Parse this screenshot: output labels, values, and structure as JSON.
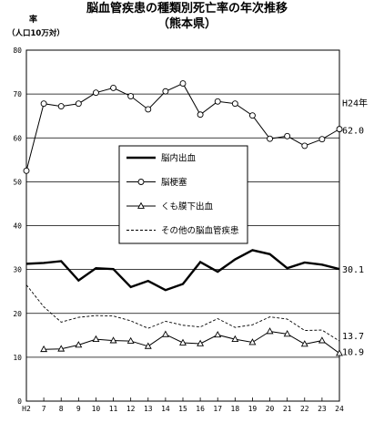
{
  "chart_data": {
    "type": "line",
    "title": "脳血管疾患の種類別死亡率の年次推移",
    "subtitle": "（熊本県）",
    "ylabel": "率",
    "yunit": "（人口10万対）",
    "ylim": [
      0,
      80
    ],
    "yticks": [
      0,
      10,
      20,
      30,
      40,
      50,
      60,
      70,
      80
    ],
    "grid": true,
    "legend_placement": "center",
    "x": [
      "H2",
      "7",
      "8",
      "9",
      "10",
      "11",
      "12",
      "13",
      "14",
      "15",
      "16",
      "17",
      "18",
      "19",
      "20",
      "21",
      "22",
      "23",
      "24"
    ],
    "series": [
      {
        "name": "脳内出血",
        "style": "thick-solid",
        "values": [
          31.3,
          31.5,
          31.9,
          27.5,
          30.3,
          30.1,
          26.0,
          27.4,
          25.3,
          26.7,
          31.7,
          29.5,
          32.3,
          34.4,
          33.5,
          30.3,
          31.6,
          31.1,
          30.1
        ]
      },
      {
        "name": "脳梗塞",
        "style": "circle-markers",
        "values": [
          52.5,
          67.8,
          67.2,
          67.8,
          70.3,
          71.4,
          69.5,
          66.5,
          70.6,
          72.4,
          65.3,
          68.3,
          67.8,
          65.1,
          59.8,
          60.4,
          58.2,
          59.7,
          62.0
        ]
      },
      {
        "name": "くも膜下出血",
        "style": "triangle-markers",
        "values": [
          null,
          11.8,
          11.9,
          12.8,
          14.1,
          13.8,
          13.7,
          12.5,
          15.2,
          13.3,
          13.1,
          15.1,
          14.1,
          13.4,
          15.9,
          15.3,
          13.0,
          13.8,
          10.9
        ]
      },
      {
        "name": "その他の脳血管疾患",
        "style": "dashed",
        "values": [
          26.5,
          21.5,
          18.0,
          19.1,
          19.5,
          19.4,
          18.3,
          16.6,
          18.2,
          17.3,
          16.9,
          18.8,
          16.8,
          17.4,
          19.2,
          18.7,
          16.1,
          16.2,
          13.7
        ]
      }
    ],
    "annotations": [
      {
        "text": "H24年",
        "series": "脳梗塞",
        "index": 18
      },
      {
        "text": "62.0",
        "series": "脳梗塞",
        "index": 18
      },
      {
        "text": "30.1",
        "series": "脳内出血",
        "index": 18
      },
      {
        "text": "13.7",
        "series": "その他の脳血管疾患",
        "index": 18
      },
      {
        "text": "10.9",
        "series": "くも膜下出血",
        "index": 18
      }
    ]
  }
}
